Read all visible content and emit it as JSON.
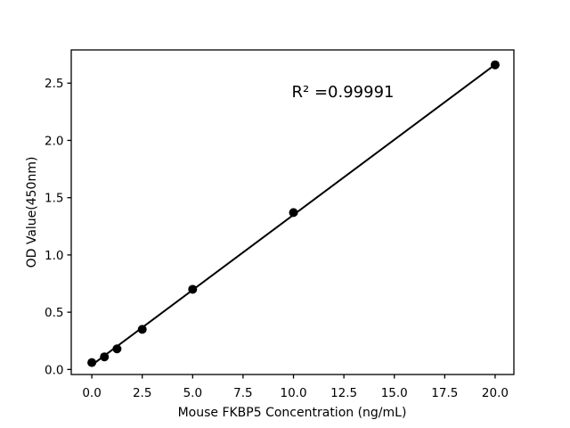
{
  "chart_data": {
    "type": "scatter",
    "title": "",
    "xlabel": "Mouse FKBP5 Concentration (ng/mL)",
    "ylabel": "OD Value(450nm)",
    "annotation": {
      "text": "R² =0.99991",
      "x": 12.45,
      "y": 2.42
    },
    "series": [
      {
        "name": "standard-curve-points",
        "x": [
          0,
          0.625,
          1.25,
          2.5,
          5,
          10,
          20
        ],
        "y": [
          0.06,
          0.11,
          0.18,
          0.35,
          0.7,
          1.37,
          2.66
        ],
        "marker": "circle",
        "color": "#000000"
      }
    ],
    "fit_line": {
      "slope": 0.1312,
      "intercept": 0.038,
      "x_start": 0,
      "x_end": 20,
      "color": "#000000"
    },
    "xlim": [
      -1.02,
      20.93
    ],
    "ylim": [
      -0.044,
      2.79
    ],
    "xticks": {
      "values": [
        0,
        2.5,
        5,
        7.5,
        10,
        12.5,
        15,
        17.5,
        20
      ],
      "labels": [
        "0.0",
        "2.5",
        "5.0",
        "7.5",
        "10.0",
        "12.5",
        "15.0",
        "17.5",
        "20.0"
      ]
    },
    "yticks": {
      "values": [
        0,
        0.5,
        1.0,
        1.5,
        2.0,
        2.5
      ],
      "labels": [
        "0.0",
        "0.5",
        "1.0",
        "1.5",
        "2.0",
        "2.5"
      ]
    },
    "grid": false,
    "legend": "none",
    "background": "#ffffff",
    "axis_color": "#000000",
    "marker_color": "#000000",
    "line_color": "#000000"
  }
}
